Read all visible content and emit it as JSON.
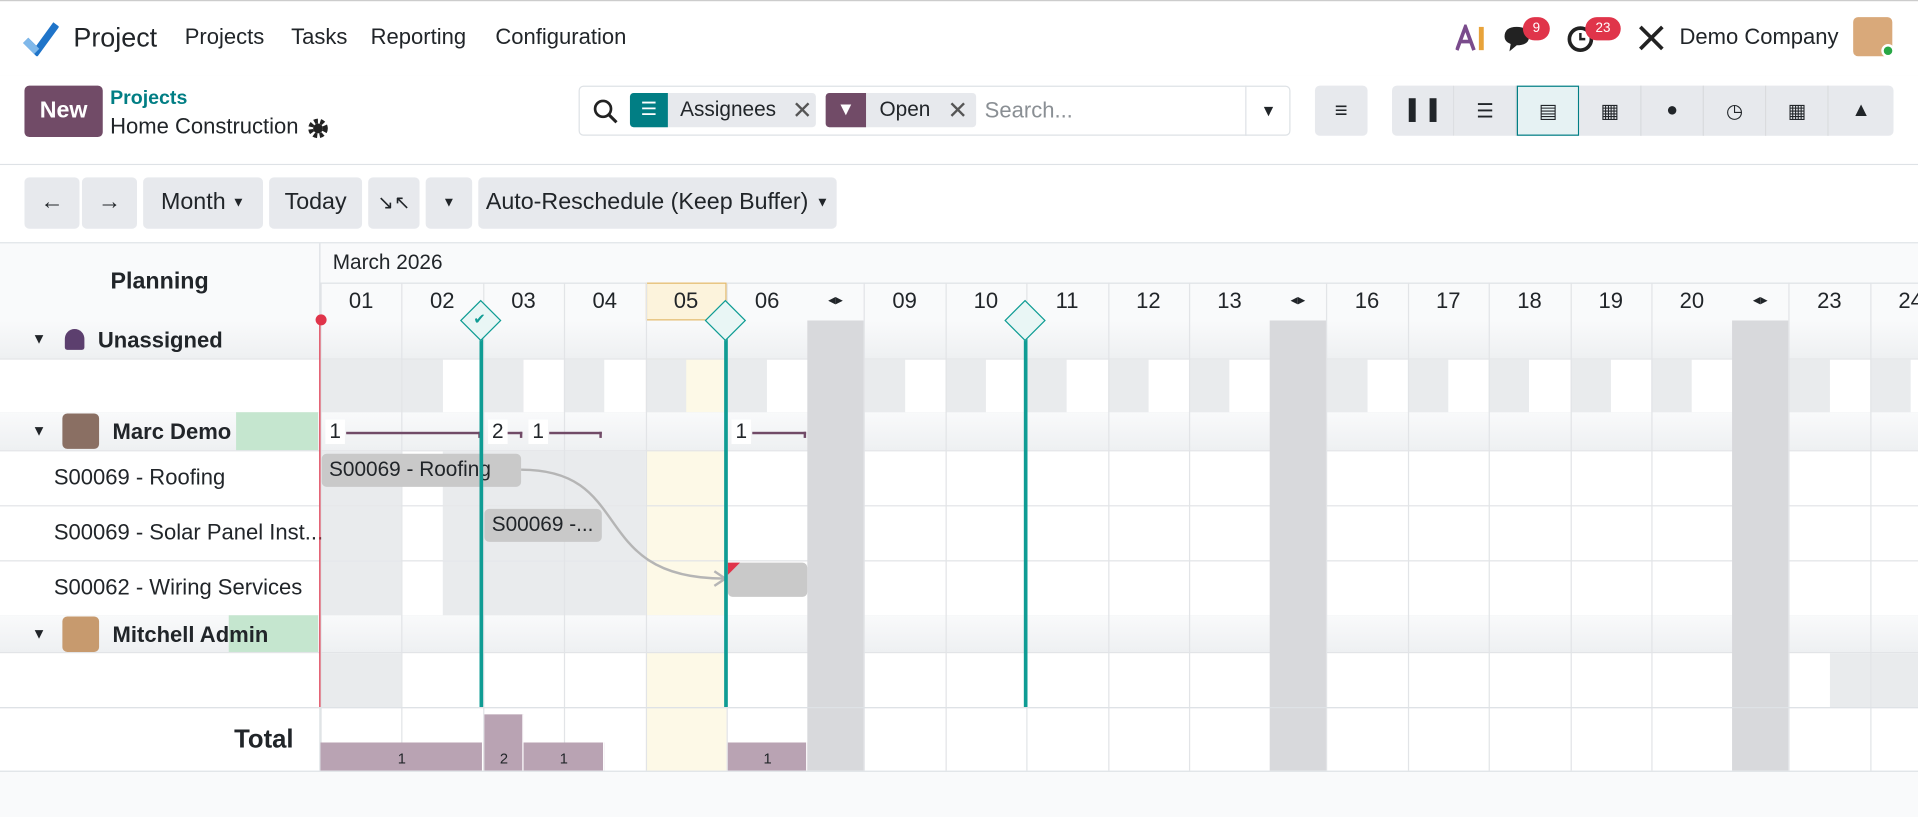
{
  "navbar": {
    "app": "Project",
    "menu": [
      "Projects",
      "Tasks",
      "Reporting",
      "Configuration"
    ],
    "messages_badge": "9",
    "activities_badge": "23",
    "company": "Demo Company"
  },
  "control_panel": {
    "new_button": "New",
    "breadcrumb": "Projects",
    "title": "Home Construction",
    "facets": [
      "Assignees",
      "Open"
    ],
    "search_placeholder": "Search..."
  },
  "toolbar": {
    "scale": "Month",
    "today": "Today",
    "reschedule": "Auto-Reschedule (Keep Buffer)"
  },
  "gantt": {
    "header": "Planning",
    "period": "March 2026",
    "days": [
      "01",
      "02",
      "03",
      "04",
      "05",
      "06",
      "09",
      "10",
      "11",
      "12",
      "13",
      "16",
      "17",
      "18",
      "19",
      "20",
      "23",
      "24"
    ],
    "groups": [
      {
        "name": "Unassigned",
        "rows": []
      },
      {
        "name": "Marc Demo",
        "rows": [
          "S00069 - Roofing",
          "S00069 - Solar Panel Inst...",
          "S00062 - Wiring Services"
        ],
        "counts": [
          1,
          2,
          1,
          1
        ]
      },
      {
        "name": "Mitchell Admin",
        "rows": []
      }
    ],
    "pills": [
      "S00069 - Roofing",
      "S00069 -..."
    ],
    "total_label": "Total",
    "totals": [
      1,
      2,
      1,
      1
    ]
  }
}
